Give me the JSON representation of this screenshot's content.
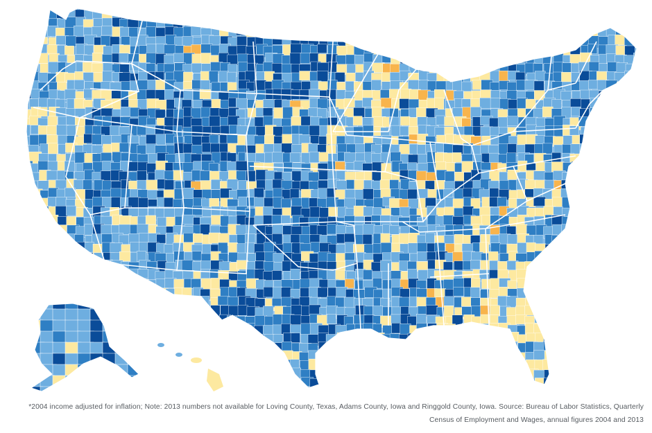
{
  "map": {
    "colors": {
      "dark_blue": "#0a4c99",
      "mid_blue": "#2f7fc4",
      "light_blue": "#6eaee0",
      "pale_yellow": "#fde9a0",
      "orange": "#f8b44c",
      "border": "#ffffff"
    }
  },
  "footnote": {
    "text": "*2004 income adjusted for inflation; Note: 2013 numbers not available for Loving County, Texas, Adams County, Iowa and Ringgold County, Iowa. Source: Bureau of Labor Statistics, Quarterly Census of Employment and Wages, annual figures 2004 and 2013"
  }
}
